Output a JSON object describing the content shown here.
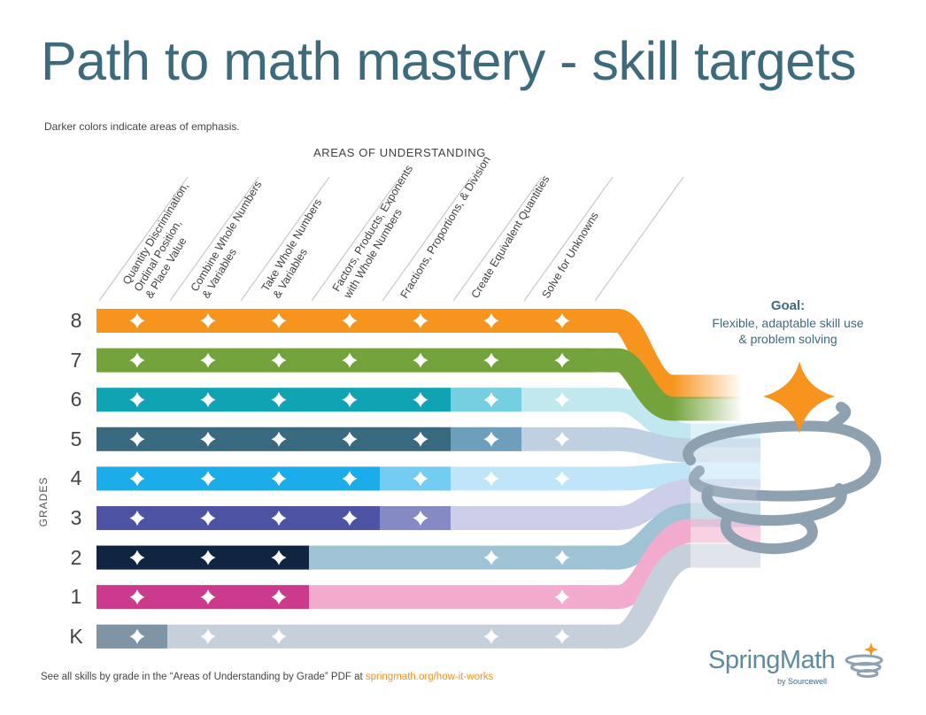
{
  "title": "Path to math mastery - skill targets",
  "subtitle": "Darker colors indicate areas of emphasis.",
  "areas_heading": "AREAS OF UNDERSTANDING",
  "grades_heading": "GRADES",
  "areas": [
    {
      "label": "Quantity Discrimination, Ordinal Position, & Place Value",
      "lines": [
        "Quantity Discrimination,",
        "Ordinal Position,",
        "& Place Value"
      ]
    },
    {
      "label": "Combine Whole Numbers & Variables",
      "lines": [
        "Combine Whole Numbers",
        "& Variables"
      ]
    },
    {
      "label": "Take Whole Numbers & Variables",
      "lines": [
        "Take Whole Numbers",
        "& Variables"
      ]
    },
    {
      "label": "Factors, Products, Exponents with Whole Numbers",
      "lines": [
        "Factors, Products, Exponents",
        "with Whole Numbers"
      ]
    },
    {
      "label": "Fractions, Proportions, & Division",
      "lines": [
        "Fractions, Proportions, & Division"
      ]
    },
    {
      "label": "Create Equivalent Quantities",
      "lines": [
        "Create Equivalent Quantities"
      ]
    },
    {
      "label": "Solve for Unknowns",
      "lines": [
        "Solve for Unknowns"
      ]
    }
  ],
  "grades": [
    {
      "label": "8",
      "dark": "#f7941d",
      "mid": "#f7941d",
      "light": "#f7941d",
      "emphasis_end": 7,
      "mid_end": 7,
      "skills": [
        1,
        1,
        1,
        1,
        1,
        1,
        1
      ]
    },
    {
      "label": "7",
      "dark": "#73a33a",
      "mid": "#73a33a",
      "light": "#73a33a",
      "emphasis_end": 7,
      "mid_end": 7,
      "skills": [
        1,
        1,
        1,
        1,
        1,
        1,
        1
      ]
    },
    {
      "label": "6",
      "dark": "#10a3b3",
      "mid": "#75cfe0",
      "light": "#c1e7ef",
      "emphasis_end": 5,
      "mid_end": 6,
      "skills": [
        1,
        1,
        1,
        1,
        1,
        1,
        1
      ]
    },
    {
      "label": "5",
      "dark": "#3a6a80",
      "mid": "#6d9fbc",
      "light": "#bed0e2",
      "emphasis_end": 5,
      "mid_end": 6,
      "skills": [
        1,
        1,
        1,
        1,
        1,
        1,
        1
      ]
    },
    {
      "label": "4",
      "dark": "#1aadea",
      "mid": "#73cdf2",
      "light": "#bfe6f8",
      "emphasis_end": 4,
      "mid_end": 5,
      "skills": [
        1,
        1,
        1,
        1,
        1,
        1,
        1
      ]
    },
    {
      "label": "3",
      "dark": "#4e54a3",
      "mid": "#8589c4",
      "light": "#cdcfe8",
      "emphasis_end": 4,
      "mid_end": 5,
      "skills": [
        1,
        1,
        1,
        1,
        1,
        0,
        0
      ]
    },
    {
      "label": "2",
      "dark": "#0f2541",
      "mid": "#0f2541",
      "light": "#9fc2d5",
      "emphasis_end": 3,
      "mid_end": 3,
      "skills": [
        1,
        1,
        1,
        0,
        0,
        1,
        1
      ]
    },
    {
      "label": "1",
      "dark": "#cb3a8d",
      "mid": "#cb3a8d",
      "light": "#f2abcc",
      "emphasis_end": 3,
      "mid_end": 3,
      "skills": [
        1,
        1,
        1,
        0,
        0,
        0,
        1
      ]
    },
    {
      "label": "K",
      "dark": "#7f95a6",
      "mid": "#7f95a6",
      "light": "#c6d0da",
      "emphasis_end": 1,
      "mid_end": 1,
      "skills": [
        1,
        1,
        1,
        0,
        0,
        1,
        1
      ]
    }
  ],
  "goal": {
    "title": "Goal:",
    "text_lines": [
      "Flexible, adaptable skill use",
      "& problem solving"
    ],
    "star_color": "#f7941d"
  },
  "footer": {
    "text": "See all skills by grade in the “Areas of Understanding by Grade” PDF at ",
    "link": "springmath.org/how-it-works"
  },
  "logo": {
    "brand": "SpringMath",
    "sub": "by Sourcewell"
  },
  "colors": {
    "title": "#3e6a7e",
    "accent": "#f7941d",
    "spiral": "#8da1b0"
  }
}
